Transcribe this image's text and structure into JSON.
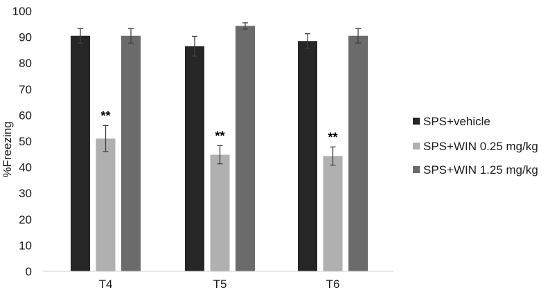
{
  "chart_data": {
    "type": "bar",
    "ylabel": "%Freezing",
    "xlabel": "",
    "ylim": [
      0,
      100
    ],
    "yticks": [
      0,
      10,
      20,
      30,
      40,
      50,
      60,
      70,
      80,
      90,
      100
    ],
    "grid": false,
    "legend_position": "right",
    "categories": [
      "T4",
      "T5",
      "T6"
    ],
    "series": [
      {
        "name": "SPS+vehicle",
        "color": "#262626",
        "values": [
          90.5,
          86.5,
          88.5
        ],
        "errors": [
          2.8,
          3.8,
          2.8
        ]
      },
      {
        "name": "SPS+WIN 0.25 mg/kg",
        "color": "#b0b0b0",
        "values": [
          51,
          44.8,
          44.3
        ],
        "errors": [
          5,
          3.5,
          3.5
        ]
      },
      {
        "name": "SPS+WIN 1.25 mg/kg",
        "color": "#6b6b6b",
        "values": [
          90.5,
          94.3,
          90.5
        ],
        "errors": [
          2.8,
          1.2,
          2.8
        ]
      }
    ],
    "annotations": [
      {
        "category": "T4",
        "series": 1,
        "text": "**"
      },
      {
        "category": "T5",
        "series": 1,
        "text": "**"
      },
      {
        "category": "T6",
        "series": 1,
        "text": "**"
      }
    ]
  }
}
